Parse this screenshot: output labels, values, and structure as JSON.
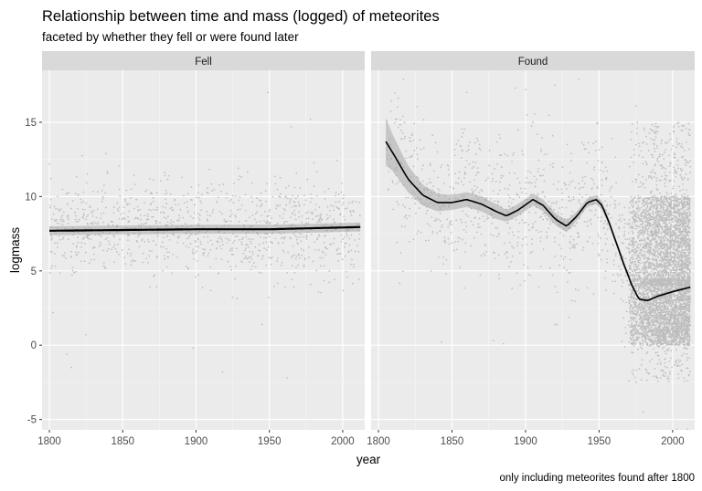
{
  "chart_data": {
    "type": "scatter",
    "title": "Relationship between time and mass (logged) of meteorites",
    "subtitle": "faceted by whether they fell or were found later",
    "caption": "only including meteorites found after 1800",
    "xlabel": "year",
    "ylabel": "logmass",
    "xlim": [
      1795,
      2015
    ],
    "ylim": [
      -5.7,
      18.5
    ],
    "x_ticks": [
      1800,
      1850,
      1900,
      1950,
      2000
    ],
    "y_ticks": [
      -5,
      0,
      5,
      10,
      15
    ],
    "grid": true,
    "legend": "none",
    "facets": [
      {
        "label": "Fell",
        "smooth": {
          "x": [
            1800,
            1850,
            1900,
            1950,
            2012
          ],
          "y": [
            7.7,
            7.75,
            7.8,
            7.8,
            7.95
          ],
          "band": 0.3
        },
        "points": {
          "x_range": [
            1800,
            2012
          ],
          "y_center": 7.8,
          "y_spread": 2.6,
          "count": 1100,
          "highlights": [
            {
              "x": 1815,
              "y": -1.5
            },
            {
              "x": 1812,
              "y": -0.6
            },
            {
              "x": 1898,
              "y": -0.2
            },
            {
              "x": 1918,
              "y": -1.8
            },
            {
              "x": 1949,
              "y": 17.0
            },
            {
              "x": 1978,
              "y": 15.2
            },
            {
              "x": 1965,
              "y": 14.7
            },
            {
              "x": 1962,
              "y": -2.2
            },
            {
              "x": 1825,
              "y": 0.7
            },
            {
              "x": 1945,
              "y": 1.4
            }
          ]
        }
      },
      {
        "label": "Found",
        "smooth": {
          "x": [
            1805,
            1810,
            1820,
            1830,
            1840,
            1850,
            1860,
            1870,
            1880,
            1887,
            1895,
            1905,
            1912,
            1920,
            1928,
            1935,
            1942,
            1948,
            1952,
            1957,
            1962,
            1967,
            1972,
            1977,
            1983,
            1990,
            2000,
            2012
          ],
          "y": [
            13.7,
            12.9,
            11.2,
            10.1,
            9.6,
            9.6,
            9.8,
            9.5,
            9.0,
            8.7,
            9.1,
            9.8,
            9.4,
            8.5,
            8.0,
            8.7,
            9.6,
            9.8,
            9.4,
            8.2,
            6.8,
            5.4,
            4.1,
            3.1,
            3.0,
            3.3,
            3.6,
            3.9
          ],
          "band": [
            1.6,
            1.2,
            0.9,
            0.7,
            0.6,
            0.5,
            0.5,
            0.5,
            0.5,
            0.4,
            0.4,
            0.4,
            0.4,
            0.4,
            0.4,
            0.3,
            0.3,
            0.3,
            0.3,
            0.2,
            0.2,
            0.2,
            0.15,
            0.12,
            0.1,
            0.1,
            0.1,
            0.1
          ]
        },
        "points": {
          "sparse_x_range": [
            1805,
            1975
          ],
          "sparse_count": 900,
          "dense_x_range": [
            1970,
            2012
          ],
          "dense_count": 5200,
          "dense_y_range": [
            -2.5,
            15
          ],
          "highlights": [
            {
              "x": 1817,
              "y": 17.9
            },
            {
              "x": 1893,
              "y": 17.3
            },
            {
              "x": 1900,
              "y": 17.2
            },
            {
              "x": 1860,
              "y": 17.0
            },
            {
              "x": 1920,
              "y": 17.5
            },
            {
              "x": 1936,
              "y": 17.9
            },
            {
              "x": 1975,
              "y": 16.1
            },
            {
              "x": 1843,
              "y": 0.2
            },
            {
              "x": 1878,
              "y": 0.3
            },
            {
              "x": 1885,
              "y": 0.1
            },
            {
              "x": 1920,
              "y": 1.4
            },
            {
              "x": 1980,
              "y": -4.5
            },
            {
              "x": 2003,
              "y": -5.7
            },
            {
              "x": 2010,
              "y": -5.7
            }
          ]
        }
      }
    ]
  }
}
